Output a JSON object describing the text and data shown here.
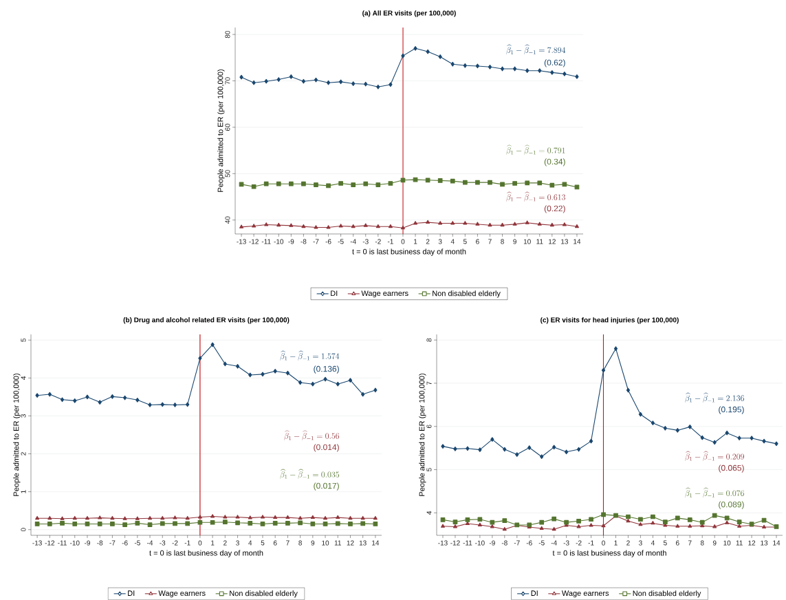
{
  "chart_data": [
    {
      "type": "line",
      "title": "(a) All ER visits (per 100,000)",
      "xlabel": "t = 0 is last business day of month",
      "ylabel": "People admitted to ER (per 100,000)",
      "x": [
        -13,
        -12,
        -11,
        -10,
        -9,
        -8,
        -7,
        -6,
        -5,
        -4,
        -3,
        -2,
        -1,
        0,
        1,
        2,
        3,
        4,
        5,
        6,
        7,
        8,
        9,
        10,
        11,
        12,
        13,
        14
      ],
      "xlim": [
        -13.5,
        14.5
      ],
      "xticks": [
        -13,
        -12,
        -11,
        -10,
        -9,
        -8,
        -7,
        -6,
        -5,
        -4,
        -3,
        -2,
        -1,
        0,
        1,
        2,
        3,
        4,
        5,
        6,
        7,
        8,
        9,
        10,
        11,
        12,
        13,
        14
      ],
      "ylim": [
        37,
        81.5
      ],
      "yticks": [
        40,
        50,
        60,
        70,
        80
      ],
      "grid": "y",
      "legend": "bottom",
      "line_style": "solid",
      "series": [
        {
          "name": "DI",
          "color": "#1a476f",
          "marker": "diamond",
          "values": [
            70.8,
            69.6,
            69.9,
            70.3,
            70.9,
            69.9,
            70.2,
            69.6,
            69.8,
            69.4,
            69.3,
            68.7,
            69.2,
            75.4,
            77.0,
            76.3,
            75.2,
            73.6,
            73.3,
            73.2,
            73.0,
            72.6,
            72.6,
            72.2,
            72.2,
            71.8,
            71.5,
            70.9
          ]
        },
        {
          "name": "Wage earners",
          "color": "#90353b",
          "marker": "triangle",
          "values": [
            38.5,
            38.7,
            39.0,
            38.9,
            38.8,
            38.6,
            38.4,
            38.4,
            38.7,
            38.6,
            38.8,
            38.6,
            38.6,
            38.3,
            39.3,
            39.5,
            39.3,
            39.3,
            39.3,
            39.1,
            38.9,
            38.9,
            39.1,
            39.4,
            39.1,
            38.9,
            39.0,
            38.6
          ]
        },
        {
          "name": "Non disabled elderly",
          "color": "#55752f",
          "marker": "square",
          "values": [
            47.7,
            47.2,
            47.8,
            47.8,
            47.8,
            47.8,
            47.6,
            47.4,
            47.9,
            47.6,
            47.8,
            47.6,
            47.9,
            48.6,
            48.7,
            48.6,
            48.5,
            48.4,
            48.1,
            48.1,
            48.1,
            47.7,
            47.9,
            48.0,
            48.0,
            47.5,
            47.7,
            47.1
          ]
        }
      ],
      "ref_lines": [
        {
          "axis": "x",
          "value": 0,
          "color": "#c4161c"
        }
      ],
      "annotations": [
        "\\widehat{\\beta}_1 - \\widehat{\\beta}_{-1} = 7.894",
        "(0.62)",
        "\\widehat{\\beta}_1 - \\widehat{\\beta}_{-1} = 0.613",
        "(0.22)",
        "\\widehat{\\beta}_1 - \\widehat{\\beta}_{-1} = 0.791",
        "(0.34)"
      ]
    },
    {
      "type": "line",
      "title": "(b) Drug and alcohol related ER visits (per 100,000)",
      "xlabel": "t = 0 is last business day of month",
      "ylabel": "People admitted to ER (per 100,000)",
      "x": [
        -13,
        -12,
        -11,
        -10,
        -9,
        -8,
        -7,
        -6,
        -5,
        -4,
        -3,
        -2,
        -1,
        0,
        1,
        2,
        3,
        4,
        5,
        6,
        7,
        8,
        9,
        10,
        11,
        12,
        13,
        14
      ],
      "xlim": [
        -13.5,
        14.5
      ],
      "xticks": [
        -13,
        -12,
        -11,
        -10,
        -9,
        -8,
        -7,
        -6,
        -5,
        -4,
        -3,
        -2,
        -1,
        0,
        1,
        2,
        3,
        4,
        5,
        6,
        7,
        8,
        9,
        10,
        11,
        12,
        13,
        14
      ],
      "ylim": [
        -0.15,
        5.15
      ],
      "yticks": [
        0,
        1,
        2,
        3,
        4,
        5
      ],
      "grid": "y",
      "legend": "bottom",
      "line_style": "solid",
      "series": [
        {
          "name": "DI",
          "color": "#1a476f",
          "marker": "diamond",
          "values": [
            3.54,
            3.57,
            3.43,
            3.4,
            3.5,
            3.36,
            3.51,
            3.48,
            3.42,
            3.29,
            3.3,
            3.29,
            3.3,
            4.52,
            4.88,
            4.37,
            4.31,
            4.08,
            4.1,
            4.18,
            4.13,
            3.88,
            3.84,
            3.97,
            3.84,
            3.94,
            3.57,
            3.68
          ]
        },
        {
          "name": "Wage earners",
          "color": "#90353b",
          "marker": "triangle",
          "values": [
            0.3,
            0.3,
            0.29,
            0.3,
            0.3,
            0.31,
            0.3,
            0.29,
            0.29,
            0.3,
            0.3,
            0.31,
            0.3,
            0.33,
            0.35,
            0.33,
            0.33,
            0.31,
            0.33,
            0.32,
            0.32,
            0.3,
            0.32,
            0.3,
            0.32,
            0.3,
            0.3,
            0.3
          ]
        },
        {
          "name": "Non disabled elderly",
          "color": "#55752f",
          "marker": "square",
          "values": [
            0.15,
            0.15,
            0.17,
            0.15,
            0.15,
            0.15,
            0.15,
            0.13,
            0.17,
            0.13,
            0.16,
            0.16,
            0.16,
            0.19,
            0.19,
            0.2,
            0.18,
            0.17,
            0.15,
            0.17,
            0.17,
            0.18,
            0.15,
            0.15,
            0.16,
            0.15,
            0.16,
            0.15
          ]
        }
      ],
      "ref_lines": [
        {
          "axis": "x",
          "value": 0,
          "color": "#c4161c"
        }
      ],
      "annotations": [
        "\\widehat{\\beta}_1 - \\widehat{\\beta}_{-1} = 1.574",
        "(0.136)",
        "\\widehat{\\beta}_1 - \\widehat{\\beta}_{-1} = 0.56",
        "(0.014)",
        "\\widehat{\\beta}_1 - \\widehat{\\beta}_{-1} = 0.035",
        "(0.017)"
      ]
    },
    {
      "type": "line",
      "title": "(c) ER visits for head injuries (per 100,000)",
      "xlabel": "t = 0 is last business day of month",
      "ylabel": "People admitted to ER (per 100,000)",
      "x": [
        -13,
        -12,
        -11,
        -10,
        -9,
        -8,
        -7,
        -6,
        -5,
        -4,
        -3,
        -2,
        -1,
        0,
        1,
        2,
        3,
        4,
        5,
        6,
        7,
        8,
        9,
        10,
        11,
        12,
        13,
        14
      ],
      "xlim": [
        -13.5,
        14.5
      ],
      "xticks": [
        -13,
        -12,
        -11,
        -10,
        -9,
        -8,
        -7,
        -6,
        -5,
        -4,
        -3,
        -2,
        -1,
        0,
        1,
        2,
        3,
        4,
        5,
        6,
        7,
        8,
        9,
        10,
        11,
        12,
        13,
        14
      ],
      "ylim": [
        3.48,
        8.13
      ],
      "yticks": [
        4,
        5,
        6,
        7,
        8
      ],
      "grid": "y",
      "legend": "bottom",
      "line_style": "solid",
      "series": [
        {
          "name": "DI",
          "color": "#1a476f",
          "marker": "diamond",
          "values": [
            5.54,
            5.48,
            5.49,
            5.46,
            5.7,
            5.47,
            5.35,
            5.51,
            5.3,
            5.52,
            5.41,
            5.47,
            5.66,
            7.3,
            7.8,
            6.84,
            6.28,
            6.08,
            5.96,
            5.91,
            5.99,
            5.74,
            5.63,
            5.85,
            5.73,
            5.73,
            5.66,
            5.6
          ]
        },
        {
          "name": "Wage earners",
          "color": "#90353b",
          "marker": "triangle",
          "values": [
            3.69,
            3.68,
            3.75,
            3.72,
            3.68,
            3.62,
            3.71,
            3.67,
            3.64,
            3.62,
            3.71,
            3.68,
            3.71,
            3.7,
            3.93,
            3.81,
            3.73,
            3.76,
            3.71,
            3.69,
            3.69,
            3.7,
            3.68,
            3.77,
            3.69,
            3.71,
            3.67,
            3.67
          ]
        },
        {
          "name": "Non disabled elderly",
          "color": "#55752f",
          "marker": "square",
          "values": [
            3.84,
            3.79,
            3.84,
            3.85,
            3.78,
            3.82,
            3.72,
            3.72,
            3.78,
            3.86,
            3.78,
            3.81,
            3.85,
            3.96,
            3.94,
            3.91,
            3.85,
            3.91,
            3.79,
            3.88,
            3.84,
            3.78,
            3.94,
            3.88,
            3.79,
            3.74,
            3.83,
            3.68
          ]
        }
      ],
      "ref_lines": [
        {
          "axis": "x",
          "value": 0,
          "color": "#c4161c"
        }
      ],
      "annotations": [
        "\\widehat{\\beta}_1 - \\widehat{\\beta}_{-1} = 2.136",
        "(0.195)",
        "\\widehat{\\beta}_1 - \\widehat{\\beta}_{-1} = 0.209",
        "(0.065)",
        "\\widehat{\\beta}_1 - \\widehat{\\beta}_{-1} = 0.076",
        "(0.089)"
      ]
    }
  ]
}
